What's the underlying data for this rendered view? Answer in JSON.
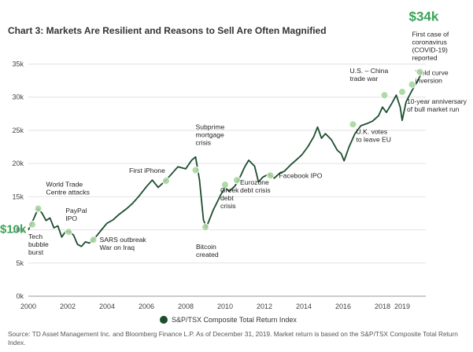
{
  "title": "Chart 3: Markets Are Resilient and Reasons to Sell Are Often Magnified",
  "source_note": "Source: TD Asset Management Inc. and Bloomberg Finance L.P. As of December 31, 2019. Market return is based on the S&P/TSX Composite Total Return Index.",
  "colors": {
    "line": "#1b4d2e",
    "marker": "#a8d5a0",
    "accent": "#3aa357",
    "grid": "#e2e2e2"
  },
  "chart_data": {
    "type": "line",
    "title": "Chart 3: Markets Are Resilient and Reasons to Sell Are Often Magnified",
    "xlabel": "",
    "ylabel": "",
    "xlim": [
      2000,
      2020.2
    ],
    "ylim": [
      0,
      36000
    ],
    "x_ticks": [
      {
        "value": 2000,
        "label": "2000"
      },
      {
        "value": 2002,
        "label": "2002"
      },
      {
        "value": 2004,
        "label": "2004"
      },
      {
        "value": 2006,
        "label": "2006"
      },
      {
        "value": 2008,
        "label": "2008"
      },
      {
        "value": 2010,
        "label": "2010"
      },
      {
        "value": 2012,
        "label": "2012"
      },
      {
        "value": 2014,
        "label": "2014"
      },
      {
        "value": 2016,
        "label": "2016"
      },
      {
        "value": 2018,
        "label": "2018"
      },
      {
        "value": 2019,
        "label": "2019"
      }
    ],
    "y_ticks": [
      {
        "value": 0,
        "label": "0k"
      },
      {
        "value": 5000,
        "label": "5k"
      },
      {
        "value": 10000,
        "label": "10k"
      },
      {
        "value": 15000,
        "label": "15k"
      },
      {
        "value": 20000,
        "label": "20k"
      },
      {
        "value": 25000,
        "label": "25k"
      },
      {
        "value": 30000,
        "label": "30k"
      },
      {
        "value": 35000,
        "label": "35k"
      }
    ],
    "grid": true,
    "legend_position": "bottom-center",
    "series": [
      {
        "name": "S&P/TSX Composite Total Return Index",
        "x": [
          2000.0,
          2000.25,
          2000.5,
          2000.7,
          2000.9,
          2001.1,
          2001.3,
          2001.5,
          2001.7,
          2001.9,
          2002.1,
          2002.3,
          2002.5,
          2002.7,
          2002.9,
          2003.1,
          2003.3,
          2003.5,
          2003.8,
          2004.0,
          2004.3,
          2004.6,
          2005.0,
          2005.3,
          2005.6,
          2006.0,
          2006.3,
          2006.6,
          2007.0,
          2007.3,
          2007.6,
          2008.0,
          2008.3,
          2008.5,
          2008.7,
          2008.9,
          2009.05,
          2009.2,
          2009.4,
          2009.6,
          2009.8,
          2010.0,
          2010.2,
          2010.5,
          2010.8,
          2011.0,
          2011.2,
          2011.5,
          2011.7,
          2011.9,
          2012.2,
          2012.5,
          2012.8,
          2013.0,
          2013.3,
          2013.6,
          2013.9,
          2014.2,
          2014.5,
          2014.7,
          2014.9,
          2015.1,
          2015.4,
          2015.7,
          2015.9,
          2016.05,
          2016.3,
          2016.6,
          2016.9,
          2017.2,
          2017.5,
          2017.8,
          2018.0,
          2018.2,
          2018.5,
          2018.7,
          2018.9,
          2019.0,
          2019.2,
          2019.5,
          2019.8,
          2020.0
        ],
        "values": [
          10000,
          11500,
          13200,
          12500,
          11400,
          11800,
          10300,
          10600,
          8900,
          9800,
          9700,
          9200,
          7800,
          7500,
          8200,
          8000,
          8500,
          9200,
          10300,
          11000,
          11500,
          12300,
          13200,
          14000,
          15000,
          16500,
          17500,
          16400,
          17500,
          18500,
          19500,
          19200,
          20500,
          21000,
          17500,
          11500,
          10400,
          11500,
          13000,
          14200,
          15400,
          16400,
          15800,
          16600,
          18200,
          19500,
          20500,
          19600,
          17200,
          17900,
          18400,
          17800,
          18600,
          18800,
          19700,
          20500,
          21300,
          22500,
          24000,
          25500,
          23800,
          24500,
          23600,
          22000,
          21500,
          20400,
          22500,
          24500,
          25700,
          26000,
          26400,
          27200,
          28500,
          27700,
          29200,
          30300,
          28500,
          26500,
          29300,
          31000,
          32500,
          33800
        ]
      }
    ],
    "annotations": [
      {
        "x": 2000.0,
        "y": 10000,
        "lines": [
          "$10k"
        ],
        "style": "big"
      },
      {
        "x": 2000.2,
        "y": 10800,
        "lines": [
          "Tech",
          "bubble",
          "burst"
        ]
      },
      {
        "x": 2000.5,
        "y": 13200,
        "lines": [
          "World Trade",
          "Centre attacks"
        ]
      },
      {
        "x": 2002.05,
        "y": 9700,
        "lines": [
          "PayPal",
          "IPO"
        ]
      },
      {
        "x": 2003.3,
        "y": 8500,
        "lines": [
          "SARS outbreak",
          "War on Iraq"
        ]
      },
      {
        "x": 2007.0,
        "y": 17400,
        "lines": [
          "First iPhone"
        ]
      },
      {
        "x": 2008.5,
        "y": 19000,
        "lines": [
          "Subprime",
          "mortgage",
          "crisis"
        ]
      },
      {
        "x": 2009.0,
        "y": 10400,
        "lines": [
          "Bitcoin",
          "created"
        ]
      },
      {
        "x": 2010.0,
        "y": 16800,
        "lines": [
          "Greek",
          "debt",
          "crisis"
        ]
      },
      {
        "x": 2010.6,
        "y": 17500,
        "lines": [
          "Eurozone",
          "debt crisis"
        ]
      },
      {
        "x": 2012.3,
        "y": 18200,
        "lines": [
          "Facebook IPO"
        ]
      },
      {
        "x": 2016.5,
        "y": 25900,
        "lines": [
          "U.K. votes",
          "to leave EU"
        ]
      },
      {
        "x": 2018.1,
        "y": 30300,
        "lines": [
          "U.S. – China",
          "trade war"
        ]
      },
      {
        "x": 2019.0,
        "y": 30800,
        "lines": [
          "10-year anniversary",
          "of bull market run"
        ]
      },
      {
        "x": 2019.5,
        "y": 31900,
        "lines": [
          "Yield curve",
          "inversion"
        ]
      },
      {
        "x": 2019.9,
        "y": 33800,
        "lines": [
          "First case of",
          "coronavirus",
          "(COVID-19)",
          "reported"
        ]
      },
      {
        "x": 2019.9,
        "y": 33800,
        "lines": [
          "$34k"
        ],
        "style": "big"
      }
    ]
  }
}
